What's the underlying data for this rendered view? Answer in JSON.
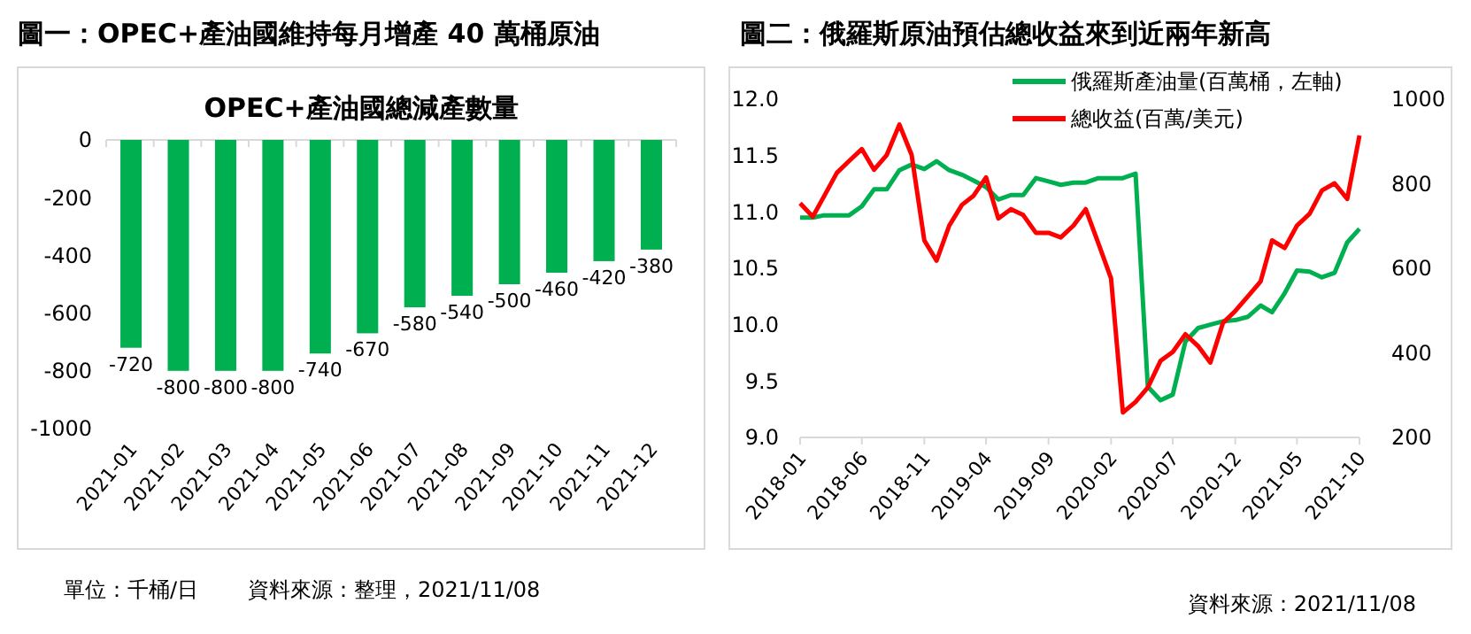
{
  "chart_data": [
    {
      "type": "bar",
      "title": "圖一：OPEC+產油國維持每月增產 40 萬桶原油",
      "subtitle": "OPEC+產油國總減產數量",
      "categories": [
        "2021-01",
        "2021-02",
        "2021-03",
        "2021-04",
        "2021-05",
        "2021-06",
        "2021-07",
        "2021-08",
        "2021-09",
        "2021-10",
        "2021-11",
        "2021-12"
      ],
      "values": [
        -720,
        -800,
        -800,
        -800,
        -740,
        -670,
        -580,
        -540,
        -500,
        -460,
        -420,
        -380
      ],
      "color": "#00b050",
      "ylim": [
        -1000,
        0
      ],
      "yticks": [
        -1000,
        -800,
        -600,
        -400,
        -200,
        0
      ],
      "data_labels": true,
      "grid": false,
      "annotations": [
        "單位：千桶/日",
        "資料來源：整理，2021/11/08"
      ]
    },
    {
      "type": "line",
      "title": "圖二：俄羅斯原油預估總收益來到近兩年新高",
      "x": [
        "2018-01",
        "2018-02",
        "2018-03",
        "2018-04",
        "2018-05",
        "2018-06",
        "2018-07",
        "2018-08",
        "2018-09",
        "2018-10",
        "2018-11",
        "2018-12",
        "2019-01",
        "2019-02",
        "2019-03",
        "2019-04",
        "2019-05",
        "2019-06",
        "2019-07",
        "2019-08",
        "2019-09",
        "2019-10",
        "2019-11",
        "2019-12",
        "2020-01",
        "2020-02",
        "2020-03",
        "2020-04",
        "2020-05",
        "2020-06",
        "2020-07",
        "2020-08",
        "2020-09",
        "2020-10",
        "2020-11",
        "2020-12",
        "2021-01",
        "2021-02",
        "2021-03",
        "2021-04",
        "2021-05",
        "2021-06",
        "2021-07",
        "2021-08",
        "2021-09",
        "2021-10"
      ],
      "series": [
        {
          "name": "俄羅斯產油量(百萬桶，左軸)",
          "color": "#00b050",
          "values": [
            10.95,
            10.95,
            10.97,
            10.97,
            10.97,
            11.05,
            11.2,
            11.2,
            11.37,
            11.42,
            11.38,
            11.45,
            11.37,
            11.33,
            11.28,
            11.22,
            11.11,
            11.15,
            11.15,
            11.3,
            11.27,
            11.24,
            11.26,
            11.26,
            11.3,
            11.3,
            11.3,
            11.34,
            9.45,
            9.33,
            9.38,
            9.85,
            9.97,
            10.0,
            10.03,
            10.04,
            10.07,
            10.17,
            10.11,
            10.28,
            10.48,
            10.47,
            10.42,
            10.46,
            10.73,
            10.85
          ]
        },
        {
          "name": "總收益(百萬/美元)",
          "color": "#ff0000",
          "axis": "y2",
          "values": [
            754,
            722,
            771,
            826,
            854,
            882,
            833,
            868,
            940,
            868,
            666,
            618,
            701,
            750,
            771,
            815,
            718,
            740,
            726,
            684,
            684,
            673,
            701,
            740,
            659,
            576,
            259,
            284,
            318,
            381,
            402,
            444,
            416,
            377,
            471,
            499,
            534,
            569,
            666,
            648,
            701,
            729,
            784,
            801,
            764,
            914
          ]
        }
      ],
      "xlim": [
        "2018-01",
        "2021-10"
      ],
      "xticks": [
        "2018-01",
        "2018-06",
        "2018-11",
        "2019-04",
        "2019-09",
        "2020-02",
        "2020-07",
        "2020-12",
        "2021-05",
        "2021-10"
      ],
      "ylim": [
        9,
        12
      ],
      "yticks": [
        {
          "value": 9,
          "label": "9.0"
        },
        9.5,
        {
          "value": 10,
          "label": "10.0"
        },
        10.5,
        {
          "value": 11,
          "label": "11.0"
        },
        11.5,
        {
          "value": 12,
          "label": "12.0"
        }
      ],
      "y2lim": [
        200,
        1000
      ],
      "y2ticks": [
        200,
        400,
        600,
        800,
        1000
      ],
      "grid": false,
      "legend": "top right",
      "marker": "none",
      "line_style": "solid",
      "annotations": [
        "資料來源：2021/11/08"
      ]
    }
  ]
}
